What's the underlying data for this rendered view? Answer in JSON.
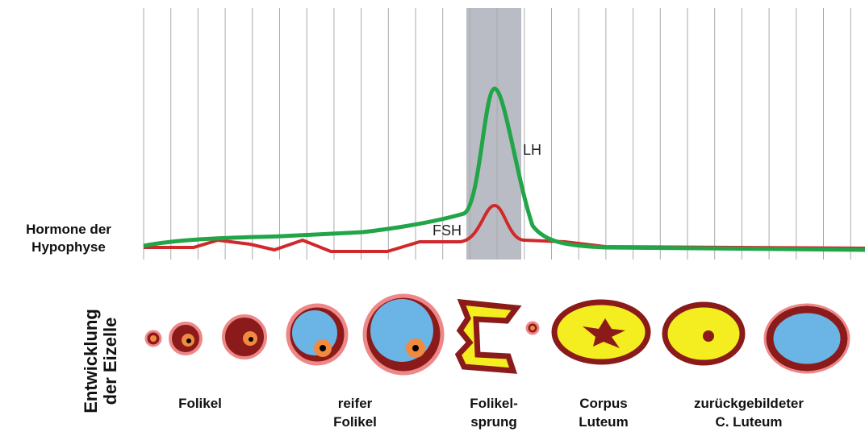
{
  "hormones": {
    "label": [
      "Hormone der",
      "Hypophyse"
    ],
    "lh": "LH",
    "fsh": "FSH"
  },
  "eizelle": {
    "label": [
      "Entwicklung",
      "der Eizelle"
    ]
  },
  "stages": [
    [
      "Folikel"
    ],
    [
      "reifer",
      "Folikel"
    ],
    [
      "Folikel-",
      "sprung"
    ],
    [
      "Corpus",
      "Luteum"
    ],
    [
      "zurückgebildeter",
      "C. Luteum"
    ]
  ]
}
